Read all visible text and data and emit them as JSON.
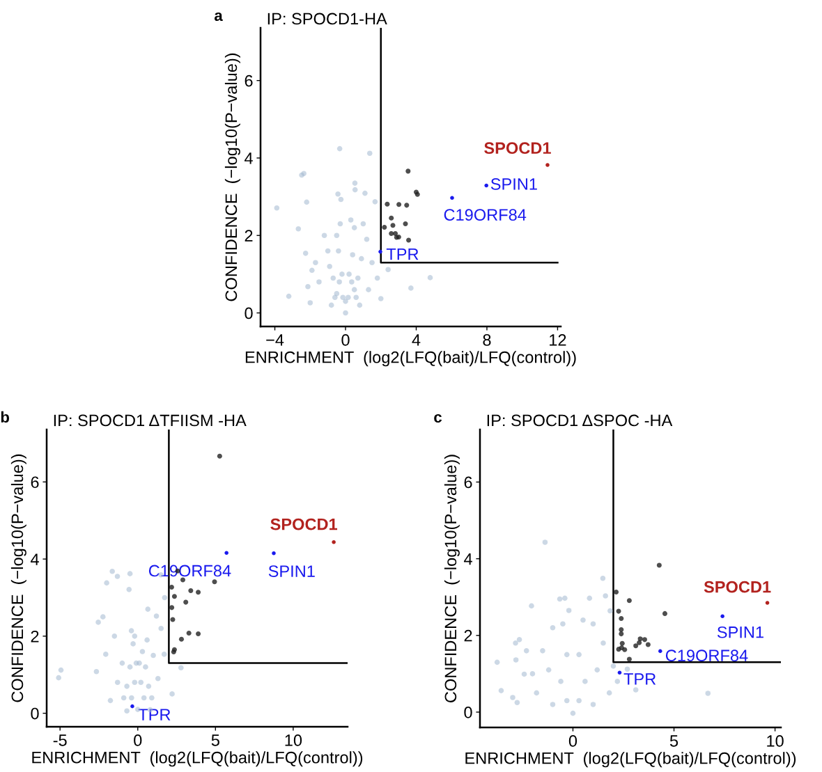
{
  "chart_data": [
    {
      "type": "scatter",
      "title": "IP: SPOCD1-HA",
      "annotations": [
        "a"
      ],
      "xlabel": "ENRICHMENT  (log2(LFQ(bait)/LFQ(control))",
      "ylabel": "CONFIDENCE  (−log10(P−value))",
      "xlim": [
        -4.81,
        12.18
      ],
      "xticks": [
        {
          "value": -4,
          "label": "−4"
        },
        0,
        4,
        8,
        12
      ],
      "ylim": [
        -0.35,
        7.36
      ],
      "yticks": [
        0,
        2,
        4,
        6
      ],
      "grid": false,
      "legend": false,
      "marker": "circle",
      "series": [
        {
          "color": "#a3b8d0",
          "x": [
            -0.33,
            1.37,
            -2.36,
            -2.48,
            -3.89,
            -3.21,
            4.79,
            3.7,
            0.53,
            0.54,
            -0.43,
            -0.26,
            1.1,
            -2.2,
            -2.67,
            -2.26,
            -2.13,
            -2.0,
            1.67,
            2.41,
            2.0,
            0,
            -1,
            -0.5,
            -0.3,
            0.3,
            0.5,
            1,
            1.5,
            1.3,
            0.8,
            -0.8,
            -1.5,
            -1.7,
            0.2,
            -0.2,
            0.5,
            -0.5,
            0,
            0.9,
            -0.9,
            0.4,
            -0.4,
            1.2,
            -1.2,
            0.7,
            -0.7,
            -0.15,
            0.15,
            0.35,
            -0.35,
            0.6,
            -0.6,
            1.8,
            -1.9
          ],
          "values": [
            4.24,
            4.12,
            3.6,
            3.56,
            2.71,
            0.43,
            0.91,
            0.64,
            3.35,
            3.18,
            3.07,
            2.93,
            3.09,
            2.86,
            2.17,
            1.54,
            0.68,
            0.26,
            2.87,
            1.12,
            0.37,
            0,
            1.6,
            2.0,
            2.3,
            2.4,
            2.2,
            2.3,
            1.3,
            0.6,
            0.2,
            0.2,
            0.8,
            1.3,
            1.0,
            1.0,
            0.6,
            0.5,
            0.3,
            1.4,
            1.2,
            1.5,
            1.6,
            1.9,
            2.0,
            0.9,
            0.9,
            0.4,
            0.4,
            0.8,
            0.8,
            0.4,
            0.4,
            0.9,
            1.1
          ]
        },
        {
          "color": "#222222",
          "x": [
            3.54,
            4.0,
            4.07,
            2.36,
            3.02,
            3.46,
            2.59,
            3.39,
            2.68,
            2.2,
            2.59,
            2.82,
            2.89,
            3.01,
            3.57
          ],
          "values": [
            3.66,
            3.12,
            3.06,
            2.81,
            2.8,
            2.78,
            2.45,
            2.3,
            2.26,
            2.21,
            2.05,
            2.05,
            1.95,
            1.96,
            1.88
          ]
        },
        {
          "name": "TPR",
          "color": "#1a1aee",
          "x": [
            1.97
          ],
          "values": [
            1.58
          ]
        },
        {
          "name": "C19ORF84",
          "color": "#1a1aee",
          "x": [
            6.03
          ],
          "values": [
            2.97
          ]
        },
        {
          "name": "SPIN1",
          "color": "#1a1aee",
          "x": [
            7.97
          ],
          "values": [
            3.29
          ]
        },
        {
          "name": "SPOCD1",
          "color": "#b2221e",
          "x": [
            11.43
          ],
          "values": [
            3.82
          ]
        },
        {
          "type": "line",
          "color": "#000000",
          "marker": "none",
          "x": [
            2,
            2,
            12
          ],
          "values": [
            7.36,
            1.3,
            1.3
          ]
        }
      ]
    },
    {
      "type": "scatter",
      "title": "IP: SPOCD1 ΔTFIISM -HA",
      "annotations": [
        "b"
      ],
      "xlabel": "ENRICHMENT  (log2(LFQ(bait)/LFQ(control))",
      "ylabel": "CONFIDENCE  (−log10(P−value))",
      "xlim": [
        -5.86,
        13.5
      ],
      "xticks": [
        {
          "value": -5,
          "label": "-5"
        },
        0,
        5,
        10
      ],
      "ylim": [
        -0.35,
        7.36
      ],
      "yticks": [
        0,
        2,
        4,
        6
      ],
      "grid": false,
      "legend": false,
      "marker": "circle",
      "series": [
        {
          "color": "#a3b8d0",
          "x": [
            -5.09,
            -4.94,
            -1.64,
            -1.31,
            -0.5,
            -2.0,
            1.49,
            1.73,
            -2.54,
            -2.24,
            -2.66,
            2.78,
            2.21,
            -1.76,
            -0.7,
            0.8,
            -0.41,
            -0.56,
            0.65,
            1.2,
            1.7,
            -2.06,
            0,
            -0.3,
            -0.2,
            0.3,
            0.6,
            1.0,
            -1.0,
            -1.3,
            1.3,
            0.9,
            -0.9,
            0.2,
            -0.2,
            0.5,
            -0.5,
            0.4,
            -0.4,
            0.7,
            -0.7,
            1.5,
            -1.5,
            0.1,
            -0.1
          ],
          "values": [
            0.92,
            1.12,
            3.68,
            3.55,
            3.62,
            3.38,
            3.59,
            3.0,
            2.36,
            2.5,
            1.08,
            1.18,
            0.5,
            0.33,
            0.06,
            0.09,
            2.14,
            3.21,
            2.7,
            2.52,
            1.53,
            1.53,
            0.1,
            1.8,
            2.0,
            1.6,
            1.9,
            1.5,
            1.3,
            0.8,
            0.9,
            0.4,
            0.4,
            0.8,
            0.8,
            1.2,
            1.2,
            0.4,
            0.4,
            0.7,
            0.7,
            2.2,
            2.0,
            1.3,
            1.3
          ]
        },
        {
          "color": "#222222",
          "x": [
            5.27,
            2.57,
            2.9,
            4.94,
            2.18,
            3.41,
            3.89,
            2.36,
            3.09,
            2.19,
            2.25,
            3.29,
            3.89,
            2.81,
            2.36,
            2.31
          ],
          "values": [
            6.67,
            3.69,
            3.46,
            3.41,
            3.27,
            3.18,
            3.14,
            3.03,
            2.88,
            2.74,
            2.43,
            2.08,
            2.06,
            1.92,
            1.65,
            1.59
          ]
        },
        {
          "name": "TPR",
          "color": "#1a1aee",
          "x": [
            -0.35
          ],
          "values": [
            0.18
          ]
        },
        {
          "name": "C19ORF84",
          "color": "#1a1aee",
          "x": [
            5.71
          ],
          "values": [
            4.16
          ]
        },
        {
          "name": "SPIN1",
          "color": "#1a1aee",
          "x": [
            8.75
          ],
          "values": [
            4.15
          ]
        },
        {
          "name": "SPOCD1",
          "color": "#b2221e",
          "x": [
            12.61
          ],
          "values": [
            4.44
          ]
        },
        {
          "type": "line",
          "color": "#000000",
          "marker": "none",
          "x": [
            2,
            2,
            13.5
          ],
          "values": [
            7.36,
            1.3,
            1.3
          ]
        }
      ]
    },
    {
      "type": "scatter",
      "title": "IP: SPOCD1 ΔSPOC -HA",
      "annotations": [
        "c"
      ],
      "xlabel": "ENRICHMENT  (log2(LFQ(bait)/LFQ(control))",
      "ylabel": "CONFIDENCE  (−log10(P−value))",
      "xlim": [
        -4.6,
        10.29
      ],
      "xticks": [
        0,
        5,
        10
      ],
      "ylim": [
        -0.4,
        7.37
      ],
      "yticks": [
        0,
        2,
        4,
        6
      ],
      "grid": false,
      "legend": false,
      "marker": "circle",
      "series": [
        {
          "color": "#a3b8d0",
          "x": [
            -1.38,
            1.48,
            -0.65,
            -0.4,
            -2.05,
            -0.2,
            0.82,
            1.61,
            -3.75,
            -3.55,
            -2.82,
            -2.65,
            -2.84,
            -2.41,
            -2.98,
            -2.76,
            6.68,
            3.11,
            2.69,
            1.84,
            0,
            -1.0,
            -0.5,
            0.5,
            1.0,
            1.5,
            -1.5,
            -2.0,
            2.0,
            1.8,
            -1.8,
            1.0,
            -1.0,
            0.3,
            -0.3,
            0.6,
            -0.6,
            1.2,
            -1.2,
            0.3,
            -0.3,
            2.2,
            -2.3
          ],
          "values": [
            4.43,
            3.49,
            2.95,
            2.97,
            2.77,
            2.65,
            2.97,
            3.03,
            1.3,
            0.56,
            1.36,
            1.89,
            1.8,
            0.99,
            0.38,
            0.25,
            0.49,
            0.58,
            1.12,
            2.64,
            -0.03,
            2.2,
            2.3,
            2.4,
            2.3,
            1.8,
            1.6,
            1.0,
            1.2,
            0.5,
            0.5,
            0.2,
            0.2,
            1.5,
            1.5,
            0.8,
            0.8,
            1.1,
            1.1,
            0.3,
            0.3,
            0.8,
            1.6
          ]
        },
        {
          "color": "#222222",
          "x": [
            4.27,
            2.14,
            2.79,
            4.55,
            2.26,
            2.39,
            2.39,
            2.39,
            3.33,
            3.55,
            3.28,
            3.72,
            3.11,
            2.44,
            2.26,
            2.41,
            2.56,
            2.79
          ],
          "values": [
            3.83,
            3.13,
            2.91,
            2.57,
            2.63,
            2.44,
            2.15,
            2.04,
            1.91,
            1.89,
            1.81,
            1.76,
            1.73,
            1.79,
            1.64,
            1.68,
            1.63,
            1.38
          ]
        },
        {
          "name": "TPR",
          "color": "#1a1aee",
          "x": [
            2.31
          ],
          "values": [
            1.03
          ]
        },
        {
          "name": "C19ORF84",
          "color": "#1a1aee",
          "x": [
            4.32
          ],
          "values": [
            1.59
          ]
        },
        {
          "name": "SPIN1",
          "color": "#1a1aee",
          "x": [
            7.4
          ],
          "values": [
            2.5
          ]
        },
        {
          "name": "SPOCD1",
          "color": "#b2221e",
          "x": [
            9.62
          ],
          "values": [
            2.85
          ]
        },
        {
          "type": "line",
          "color": "#000000",
          "marker": "none",
          "x": [
            2,
            2,
            10.29
          ],
          "values": [
            7.37,
            1.3,
            1.3
          ]
        }
      ]
    }
  ]
}
